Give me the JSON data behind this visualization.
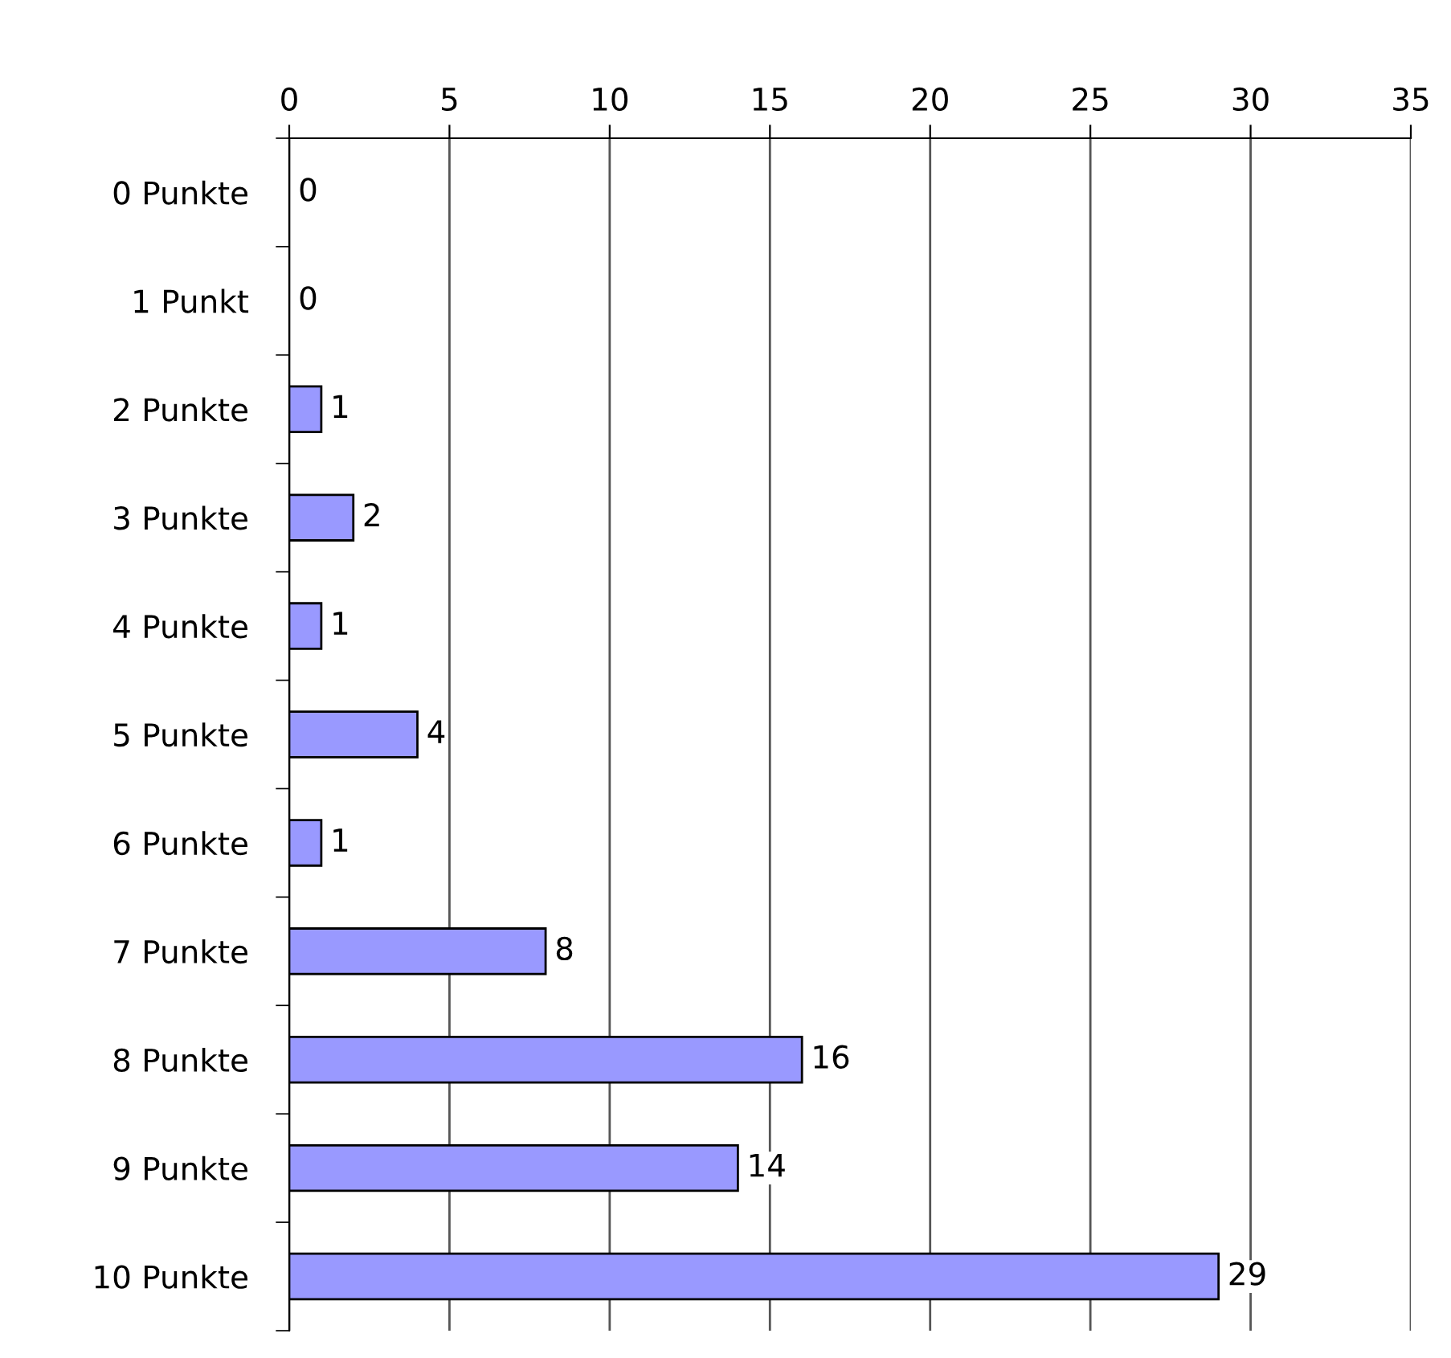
{
  "chart_data": {
    "type": "bar",
    "orientation": "horizontal",
    "categories": [
      "0 Punkte",
      "1 Punkt",
      "2 Punkte",
      "3 Punkte",
      "4 Punkte",
      "5 Punkte",
      "6 Punkte",
      "7 Punkte",
      "8 Punkte",
      "9 Punkte",
      "10 Punkte"
    ],
    "values": [
      0,
      0,
      1,
      2,
      1,
      4,
      1,
      8,
      16,
      14,
      29
    ],
    "color": "#9999ff",
    "xlim": [
      0,
      35
    ],
    "xticks": [
      0,
      5,
      10,
      15,
      20,
      25,
      30,
      35
    ],
    "grid": "x",
    "data_labels": true
  }
}
